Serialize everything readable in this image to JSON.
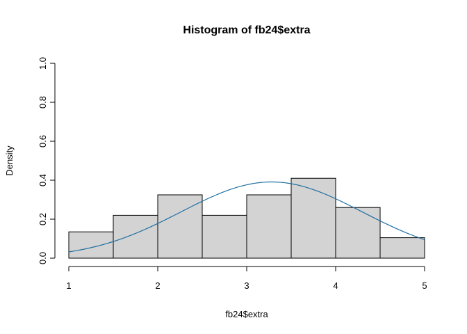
{
  "chart_data": {
    "type": "bar",
    "title": "Histogram of fb24$extra",
    "xlabel": "fb24$extra",
    "ylabel": "Density",
    "xlim": [
      1,
      5
    ],
    "ylim": [
      0,
      1
    ],
    "grid": false,
    "x_ticks": [
      "1",
      "2",
      "3",
      "4",
      "5"
    ],
    "y_ticks": [
      "0.0",
      "0.2",
      "0.4",
      "0.6",
      "0.8",
      "1.0"
    ],
    "bins": [
      {
        "from": 1.0,
        "to": 1.5,
        "density": 0.135
      },
      {
        "from": 1.5,
        "to": 2.0,
        "density": 0.22
      },
      {
        "from": 2.0,
        "to": 2.5,
        "density": 0.325
      },
      {
        "from": 2.5,
        "to": 3.0,
        "density": 0.22
      },
      {
        "from": 3.0,
        "to": 3.5,
        "density": 0.325
      },
      {
        "from": 3.5,
        "to": 4.0,
        "density": 0.41
      },
      {
        "from": 4.0,
        "to": 4.5,
        "density": 0.26
      },
      {
        "from": 4.5,
        "to": 5.0,
        "density": 0.105
      }
    ],
    "bar_fill": "#d3d3d3",
    "bar_stroke": "#000000",
    "density_curve": {
      "type": "normal",
      "mean": 3.28,
      "sd": 1.02,
      "color": "#1f6f9f"
    }
  }
}
